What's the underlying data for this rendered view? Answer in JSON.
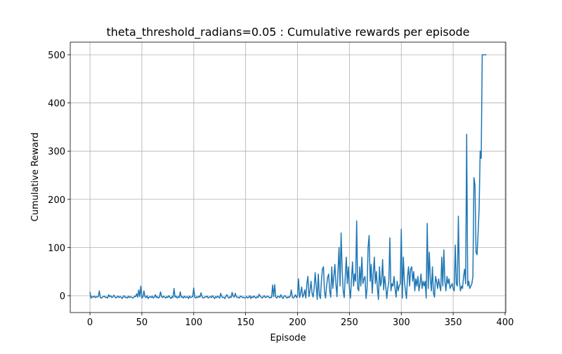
{
  "chart_data": {
    "type": "line",
    "title": "theta_threshold_radians=0.05 : Cumulative rewards per episode",
    "xlabel": "Episode",
    "ylabel": "Cumulative Reward",
    "x": [
      0,
      1,
      2,
      3,
      4,
      5,
      6,
      7,
      8,
      9,
      10,
      11,
      12,
      13,
      14,
      15,
      16,
      17,
      18,
      19,
      20,
      21,
      22,
      23,
      24,
      25,
      26,
      27,
      28,
      29,
      30,
      31,
      32,
      33,
      34,
      35,
      36,
      37,
      38,
      39,
      40,
      41,
      42,
      43,
      44,
      45,
      46,
      47,
      48,
      49,
      50,
      51,
      52,
      53,
      54,
      55,
      56,
      57,
      58,
      59,
      60,
      61,
      62,
      63,
      64,
      65,
      66,
      67,
      68,
      69,
      70,
      71,
      72,
      73,
      74,
      75,
      76,
      77,
      78,
      79,
      80,
      81,
      82,
      83,
      84,
      85,
      86,
      87,
      88,
      89,
      90,
      91,
      92,
      93,
      94,
      95,
      96,
      97,
      98,
      99,
      100,
      101,
      102,
      103,
      104,
      105,
      106,
      107,
      108,
      109,
      110,
      111,
      112,
      113,
      114,
      115,
      116,
      117,
      118,
      119,
      120,
      121,
      122,
      123,
      124,
      125,
      126,
      127,
      128,
      129,
      130,
      131,
      132,
      133,
      134,
      135,
      136,
      137,
      138,
      139,
      140,
      141,
      142,
      143,
      144,
      145,
      146,
      147,
      148,
      149,
      150,
      151,
      152,
      153,
      154,
      155,
      156,
      157,
      158,
      159,
      160,
      161,
      162,
      163,
      164,
      165,
      166,
      167,
      168,
      169,
      170,
      171,
      172,
      173,
      174,
      175,
      176,
      177,
      178,
      179,
      180,
      181,
      182,
      183,
      184,
      185,
      186,
      187,
      188,
      189,
      190,
      191,
      192,
      193,
      194,
      195,
      196,
      197,
      198,
      199,
      200,
      201,
      202,
      203,
      204,
      205,
      206,
      207,
      208,
      209,
      210,
      211,
      212,
      213,
      214,
      215,
      216,
      217,
      218,
      219,
      220,
      221,
      222,
      223,
      224,
      225,
      226,
      227,
      228,
      229,
      230,
      231,
      232,
      233,
      234,
      235,
      236,
      237,
      238,
      239,
      240,
      241,
      242,
      243,
      244,
      245,
      246,
      247,
      248,
      249,
      250,
      251,
      252,
      253,
      254,
      255,
      256,
      257,
      258,
      259,
      260,
      261,
      262,
      263,
      264,
      265,
      266,
      267,
      268,
      269,
      270,
      271,
      272,
      273,
      274,
      275,
      276,
      277,
      278,
      279,
      280,
      281,
      282,
      283,
      284,
      285,
      286,
      287,
      288,
      289,
      290,
      291,
      292,
      293,
      294,
      295,
      296,
      297,
      298,
      299,
      300,
      301,
      302,
      303,
      304,
      305,
      306,
      307,
      308,
      309,
      310,
      311,
      312,
      313,
      314,
      315,
      316,
      317,
      318,
      319,
      320,
      321,
      322,
      323,
      324,
      325,
      326,
      327,
      328,
      329,
      330,
      331,
      332,
      333,
      334,
      335,
      336,
      337,
      338,
      339,
      340,
      341,
      342,
      343,
      344,
      345,
      346,
      347,
      348,
      349,
      350,
      351,
      352,
      353,
      354,
      355,
      356,
      357,
      358,
      359,
      360,
      361,
      362,
      363,
      364,
      365,
      366,
      367,
      368,
      369,
      370,
      371,
      372,
      373,
      374,
      375,
      376,
      377,
      378,
      379,
      380,
      381,
      382
    ],
    "series": [
      {
        "color": "#1f77b4",
        "values": [
          8,
          -5,
          -2,
          -3,
          -1,
          -4,
          -2,
          -3,
          -2,
          10,
          -4,
          -5,
          -3,
          -2,
          -1,
          -4,
          -3,
          -5,
          2,
          -2,
          0,
          -4,
          -3,
          1,
          -2,
          -5,
          -3,
          -1,
          -4,
          -2,
          -3,
          -6,
          -2,
          0,
          -4,
          -3,
          -5,
          -1,
          -4,
          -2,
          -3,
          -5,
          -4,
          -1,
          -2,
          4,
          -3,
          12,
          -2,
          20,
          -5,
          -3,
          10,
          -2,
          -4,
          0,
          -6,
          -3,
          -2,
          -4,
          -1,
          -5,
          -3,
          2,
          -4,
          -2,
          -5,
          -3,
          8,
          -2,
          -4,
          -1,
          -3,
          -5,
          -2,
          -4,
          0,
          -3,
          -6,
          -2,
          -4,
          15,
          -3,
          -1,
          -5,
          -2,
          -4,
          8,
          -3,
          -2,
          -5,
          -1,
          -4,
          -3,
          -2,
          -6,
          -1,
          -4,
          -3,
          -2,
          16,
          -3,
          -5,
          -2,
          -4,
          -1,
          -3,
          6,
          -2,
          -5,
          -4,
          -2,
          -3,
          -1,
          -5,
          -3,
          -2,
          -4,
          0,
          -3,
          -6,
          -2,
          -4,
          -1,
          -3,
          -5,
          5,
          -2,
          -4,
          -3,
          -6,
          -1,
          2,
          -3,
          -5,
          -2,
          -4,
          7,
          -1,
          -3,
          5,
          -2,
          -4,
          -3,
          -5,
          -1,
          -2,
          -4,
          -3,
          -5,
          -4,
          -2,
          -5,
          -3,
          0,
          -6,
          -2,
          -4,
          -1,
          -3,
          -5,
          -2,
          -4,
          3,
          -1,
          -3,
          -5,
          -2,
          0,
          -4,
          -3,
          -1,
          -2,
          -5,
          -3,
          -4,
          22,
          -2,
          23,
          -3,
          -5,
          -1,
          -2,
          -4,
          2,
          -3,
          -6,
          -1,
          0,
          -3,
          -5,
          -2,
          -4,
          -1,
          12,
          -3,
          -5,
          -2,
          2,
          -4,
          -1,
          35,
          -4,
          5,
          18,
          -3,
          2,
          12,
          -5,
          25,
          40,
          -2,
          10,
          30,
          5,
          -3,
          15,
          48,
          20,
          -8,
          45,
          2,
          -6,
          30,
          55,
          60,
          8,
          -5,
          20,
          38,
          45,
          10,
          -3,
          60,
          15,
          40,
          65,
          25,
          -2,
          50,
          100,
          20,
          130,
          55,
          10,
          -4,
          40,
          80,
          25,
          60,
          15,
          -5,
          35,
          70,
          20,
          45,
          30,
          155,
          15,
          10,
          60,
          20,
          80,
          25,
          35,
          40,
          -6,
          15,
          100,
          125,
          30,
          65,
          5,
          45,
          80,
          25,
          50,
          15,
          -8,
          60,
          20,
          30,
          75,
          12,
          40,
          20,
          -6,
          15,
          30,
          120,
          10,
          25,
          20,
          40,
          15,
          -3,
          30,
          10,
          20,
          25,
          138,
          -5,
          80,
          30,
          10,
          -6,
          40,
          60,
          20,
          55,
          60,
          30,
          50,
          10,
          35,
          20,
          40,
          10,
          25,
          45,
          15,
          30,
          20,
          30,
          -5,
          150,
          15,
          90,
          35,
          10,
          60,
          5,
          -3,
          40,
          30,
          15,
          35,
          20,
          10,
          80,
          20,
          95,
          30,
          10,
          40,
          25,
          35,
          15,
          20,
          25,
          15,
          10,
          105,
          25,
          20,
          165,
          30,
          10,
          20,
          15,
          40,
          55,
          25,
          335,
          20,
          30,
          15,
          20,
          25,
          40,
          245,
          230,
          90,
          85,
          130,
          180,
          300,
          285,
          500,
          500,
          500,
          500,
          500
        ]
      }
    ],
    "xlim": [
      -19,
      400.7
    ],
    "ylim": [
      -35,
      526.2
    ],
    "xticks": [
      0,
      50,
      100,
      150,
      200,
      250,
      300,
      350,
      400
    ],
    "yticks": [
      0,
      100,
      200,
      300,
      400,
      500
    ],
    "grid": true
  }
}
